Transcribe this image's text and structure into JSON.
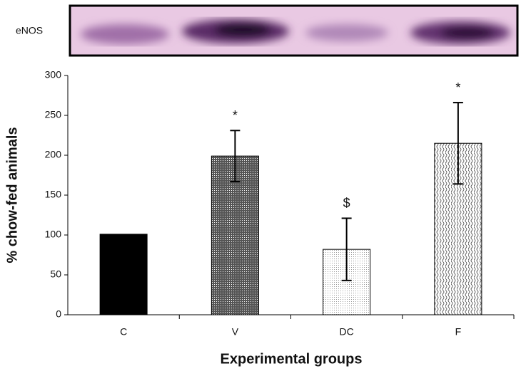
{
  "chart_data": {
    "type": "bar",
    "blot_label": "eNOS",
    "x_label": "Experimental groups",
    "y_label": "% chow-fed animals",
    "categories": [
      "C",
      "V",
      "DC",
      "F"
    ],
    "values": [
      101,
      199,
      82,
      215
    ],
    "errors": [
      null,
      32,
      39,
      51
    ],
    "annotations": [
      null,
      "*",
      "$",
      "*"
    ],
    "ylim": [
      0,
      300
    ],
    "yticks": [
      0,
      50,
      100,
      150,
      200,
      250,
      300
    ]
  }
}
